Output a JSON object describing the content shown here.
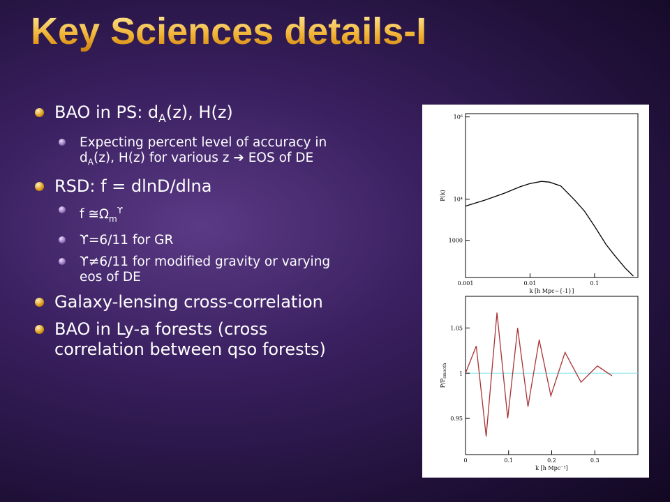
{
  "title": "Key Sciences details-I",
  "bullets": [
    {
      "runs": [
        "BAO in PS: d",
        {
          "sub": "A"
        },
        "(z), H(z)"
      ],
      "subs": [
        [
          "Expecting percent level of accuracy in d",
          {
            "sub": "A"
          },
          "(z), H(z) for various z ➔ EOS of DE"
        ]
      ]
    },
    {
      "runs": [
        "RSD: f = dlnD/dlna"
      ],
      "subs": [
        [
          "f ≅Ω",
          {
            "sub": "m"
          },
          {
            "sup": "ϒ"
          }
        ],
        [
          "ϒ=6/11 for GR"
        ],
        [
          "ϒ≠6/11 for modified gravity or varying eos of DE"
        ]
      ]
    },
    {
      "runs": [
        "Galaxy-lensing cross-correlation"
      ],
      "subs": []
    },
    {
      "runs": [
        "BAO in Ly-a forests (cross correlation between qso forests)"
      ],
      "subs": []
    }
  ],
  "figure": [
    {
      "type": "line",
      "xlog": true,
      "ylog": true,
      "color": "#000000",
      "xlabel": "k [h Mpc~{-1}]",
      "ylabel": [
        "P(k)"
      ],
      "xlim": [
        0.001,
        0.47
      ],
      "ylim": [
        125,
        1200000
      ],
      "xticks": [
        0.001,
        0.01,
        0.1
      ],
      "yticks": [
        {
          "value": 1000000,
          "label": "10⁶"
        },
        {
          "value": 10000,
          "label": "10⁴"
        },
        1000
      ],
      "x": [
        0.001,
        0.002,
        0.004,
        0.007,
        0.01,
        0.015,
        0.02,
        0.03,
        0.05,
        0.07,
        0.1,
        0.15,
        0.2,
        0.3,
        0.4
      ],
      "values": [
        6800,
        9500,
        14000,
        20000,
        24000,
        27000,
        26000,
        21000,
        9300,
        5100,
        2200,
        800,
        450,
        210,
        135
      ]
    },
    {
      "type": "line",
      "xlog": false,
      "ylog": false,
      "color": "#a83232",
      "xlabel": "k [h Mpc⁻¹]",
      "ylabel": [
        "P/P",
        {
          "sub": "smooth"
        }
      ],
      "xlim": [
        0,
        0.4
      ],
      "ylim": [
        0.91,
        1.085
      ],
      "xticks": [
        0,
        0.1,
        0.2,
        0.3
      ],
      "yticks": [
        0.95,
        1,
        1.05
      ],
      "x": [
        0,
        0.025,
        0.048,
        0.073,
        0.098,
        0.121,
        0.145,
        0.171,
        0.198,
        0.231,
        0.268,
        0.306,
        0.34
      ],
      "values": [
        1.0,
        1.03,
        0.93,
        1.067,
        0.95,
        1.05,
        0.963,
        1.037,
        0.975,
        1.023,
        0.99,
        1.008,
        0.997
      ]
    }
  ]
}
